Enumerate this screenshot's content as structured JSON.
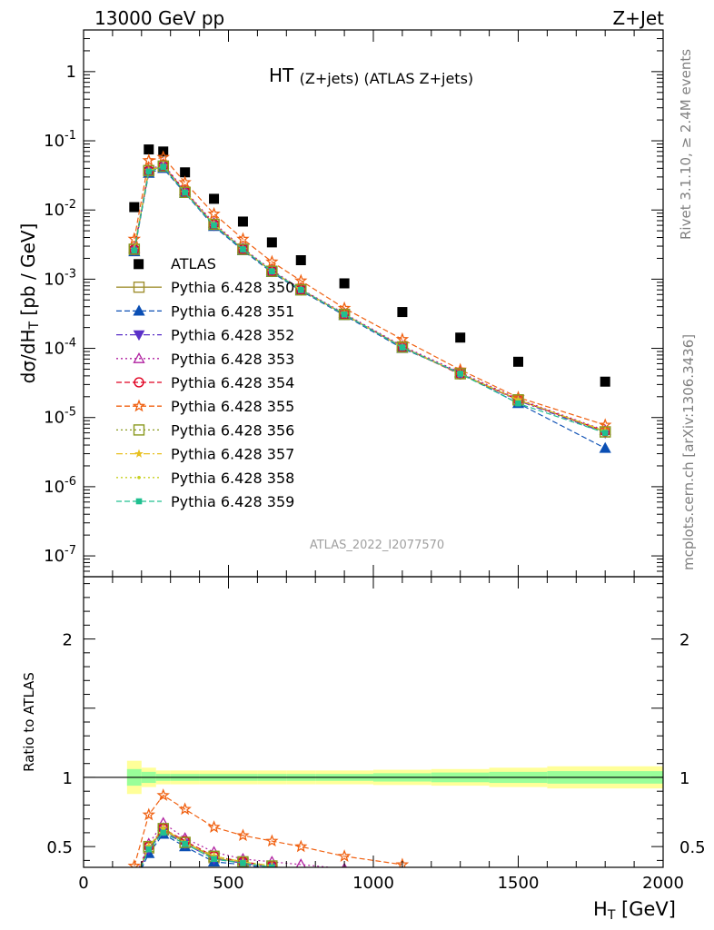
{
  "header": {
    "left": "13000 GeV pp",
    "right": "Z+Jet",
    "title_main": "HT",
    "title_sub": "(Z+jets) (ATLAS Z+jets)"
  },
  "side_labels": {
    "rivet": "Rivet 3.1.10, ≥ 2.4M events",
    "mcplots": "mcplots.cern.ch [arXiv:1306.3436]"
  },
  "analysis_ref": "ATLAS_2022_I2077570",
  "chart_data": [
    {
      "type": "scatter",
      "panel": "main",
      "ylabel": "dσ/dH_T [pb / GeV]",
      "yscale": "log",
      "ylim": [
        5e-08,
        4
      ],
      "xlim": [
        0,
        2000
      ],
      "ytick_labels": [
        "1",
        "10^-1",
        "10^-2",
        "10^-3",
        "10^-4",
        "10^-5",
        "10^-6",
        "10^-7"
      ],
      "x": [
        175,
        225,
        275,
        350,
        450,
        550,
        650,
        750,
        900,
        1100,
        1300,
        1500,
        1800
      ],
      "series": [
        {
          "name": "ATLAS",
          "color": "#000000",
          "marker": "square-filled",
          "line": "none",
          "values": [
            0.011,
            0.075,
            0.07,
            0.035,
            0.0145,
            0.0068,
            0.0034,
            0.00188,
            0.00087,
            0.000335,
            0.000143,
            6.4e-05,
            3.3e-05
          ],
          "extra_points": [
            {
              "x": 190,
              "y": 0.00165
            }
          ]
        },
        {
          "name": "Pythia 6.428 350",
          "color": "#a09030",
          "marker": "square-open",
          "line": "solid",
          "values": [
            0.0027,
            0.037,
            0.043,
            0.018,
            0.0062,
            0.0027,
            0.0013,
            0.00071,
            0.00031,
            0.000105,
            4.3e-05,
            1.8e-05,
            6.2e-06
          ]
        },
        {
          "name": "Pythia 6.428 351",
          "color": "#0b4fb4",
          "marker": "triangle-up-filled",
          "line": "dashed",
          "values": [
            0.0025,
            0.034,
            0.04,
            0.0175,
            0.0058,
            0.0026,
            0.00125,
            0.00068,
            0.0003,
            0.0001,
            4.4e-05,
            1.6e-05,
            3.6e-06
          ]
        },
        {
          "name": "Pythia 6.428 352",
          "color": "#5a30c8",
          "marker": "triangle-down-filled",
          "line": "dashdot",
          "values": [
            0.0026,
            0.036,
            0.042,
            0.018,
            0.006,
            0.0027,
            0.0013,
            0.0007,
            0.00031,
            0.000104,
            4.3e-05,
            1.75e-05,
            6e-06
          ]
        },
        {
          "name": "Pythia 6.428 353",
          "color": "#b020a0",
          "marker": "triangle-up-open",
          "line": "dotted",
          "values": [
            0.0028,
            0.038,
            0.046,
            0.019,
            0.0065,
            0.0028,
            0.00135,
            0.00072,
            0.00032,
            0.000108,
            4.5e-05,
            1.85e-05,
            6.5e-06
          ]
        },
        {
          "name": "Pythia 6.428 354",
          "color": "#e00020",
          "marker": "circle-open",
          "line": "dashed",
          "values": [
            0.0027,
            0.037,
            0.044,
            0.0185,
            0.0062,
            0.0027,
            0.0013,
            0.0007,
            0.00031,
            0.000104,
            4.2e-05,
            1.8e-05,
            6.3e-06
          ]
        },
        {
          "name": "Pythia 6.428 355",
          "color": "#f06010",
          "marker": "star-open",
          "line": "dashed",
          "values": [
            0.0038,
            0.052,
            0.058,
            0.025,
            0.0088,
            0.0038,
            0.00178,
            0.00095,
            0.00038,
            0.000135,
            4.9e-05,
            1.95e-05,
            7.8e-06
          ]
        },
        {
          "name": "Pythia 6.428 356",
          "color": "#8a9a20",
          "marker": "square-open",
          "line": "dotted",
          "values": [
            0.0027,
            0.037,
            0.043,
            0.018,
            0.0062,
            0.0027,
            0.0013,
            0.0007,
            0.00031,
            0.000104,
            4.3e-05,
            1.8e-05,
            6.2e-06
          ]
        },
        {
          "name": "Pythia 6.428 357",
          "color": "#e8c020",
          "marker": "star-small",
          "line": "dashdot",
          "values": [
            0.0027,
            0.037,
            0.043,
            0.018,
            0.0062,
            0.0027,
            0.0013,
            0.0007,
            0.00031,
            0.000104,
            4.3e-05,
            1.8e-05,
            6.4e-06
          ]
        },
        {
          "name": "Pythia 6.428 358",
          "color": "#c8d020",
          "marker": "dot",
          "line": "dotted",
          "values": [
            0.0027,
            0.037,
            0.043,
            0.018,
            0.0062,
            0.0027,
            0.0013,
            0.0007,
            0.00031,
            0.000104,
            4.3e-05,
            1.8e-05,
            6.3e-06
          ]
        },
        {
          "name": "Pythia 6.428 359",
          "color": "#20c090",
          "marker": "square-filled-small",
          "line": "dashed",
          "values": [
            0.0026,
            0.036,
            0.042,
            0.0178,
            0.006,
            0.0027,
            0.0013,
            0.0007,
            0.00031,
            0.000103,
            4.3e-05,
            1.6e-05,
            6e-06
          ]
        }
      ]
    },
    {
      "type": "line",
      "panel": "ratio",
      "ylabel": "Ratio to ATLAS",
      "xlabel": "H_T [GeV]",
      "xlim": [
        0,
        2000
      ],
      "ylim": [
        0.35,
        2.45
      ],
      "ytick_labels": [
        "0.5",
        "1",
        "2"
      ],
      "xtick_labels": [
        "0",
        "500",
        "1000",
        "1500",
        "2000"
      ],
      "reference_line": 1,
      "bands": {
        "edges": [
          150,
          200,
          250,
          300,
          400,
          500,
          600,
          700,
          800,
          1000,
          1200,
          1400,
          1600,
          2000
        ],
        "outer": [
          0.12,
          0.07,
          0.05,
          0.05,
          0.05,
          0.05,
          0.05,
          0.05,
          0.05,
          0.055,
          0.06,
          0.07,
          0.08
        ],
        "inner": [
          0.06,
          0.04,
          0.025,
          0.025,
          0.025,
          0.025,
          0.025,
          0.025,
          0.025,
          0.03,
          0.035,
          0.04,
          0.045
        ],
        "outer_color": "#ffff99",
        "inner_color": "#99ff99"
      },
      "x": [
        175,
        225,
        275,
        350,
        450,
        550,
        650,
        750,
        900,
        1100
      ],
      "series": [
        {
          "name": "Pythia 6.428 350",
          "values": [
            0.25,
            0.49,
            0.62,
            0.53,
            0.42,
            0.38,
            0.35,
            null,
            null,
            null
          ]
        },
        {
          "name": "Pythia 6.428 351",
          "values": [
            0.23,
            0.45,
            0.59,
            0.5,
            0.39,
            0.37,
            0.34,
            null,
            null,
            null
          ]
        },
        {
          "name": "Pythia 6.428 352",
          "values": [
            0.24,
            0.48,
            0.61,
            0.52,
            0.41,
            0.38,
            0.35,
            null,
            null,
            null
          ]
        },
        {
          "name": "Pythia 6.428 353",
          "values": [
            0.26,
            0.52,
            0.67,
            0.56,
            0.46,
            0.41,
            0.39,
            0.37,
            0.34,
            null
          ]
        },
        {
          "name": "Pythia 6.428 354",
          "values": [
            0.25,
            0.5,
            0.63,
            0.54,
            0.43,
            0.39,
            0.36,
            null,
            null,
            null
          ]
        },
        {
          "name": "Pythia 6.428 355",
          "values": [
            0.36,
            0.73,
            0.87,
            0.77,
            0.64,
            0.58,
            0.54,
            0.5,
            0.43,
            0.37
          ]
        },
        {
          "name": "Pythia 6.428 356",
          "values": [
            0.25,
            0.5,
            0.63,
            0.53,
            0.43,
            0.39,
            0.36,
            null,
            null,
            null
          ]
        },
        {
          "name": "Pythia 6.428 357",
          "values": [
            0.25,
            0.5,
            0.63,
            0.53,
            0.43,
            0.39,
            0.36,
            null,
            null,
            null
          ]
        },
        {
          "name": "Pythia 6.428 358",
          "values": [
            0.25,
            0.5,
            0.63,
            0.53,
            0.43,
            0.39,
            0.36,
            null,
            null,
            null
          ]
        },
        {
          "name": "Pythia 6.428 359",
          "values": [
            0.24,
            0.48,
            0.6,
            0.52,
            0.41,
            0.38,
            0.35,
            null,
            null,
            null
          ]
        }
      ]
    }
  ]
}
